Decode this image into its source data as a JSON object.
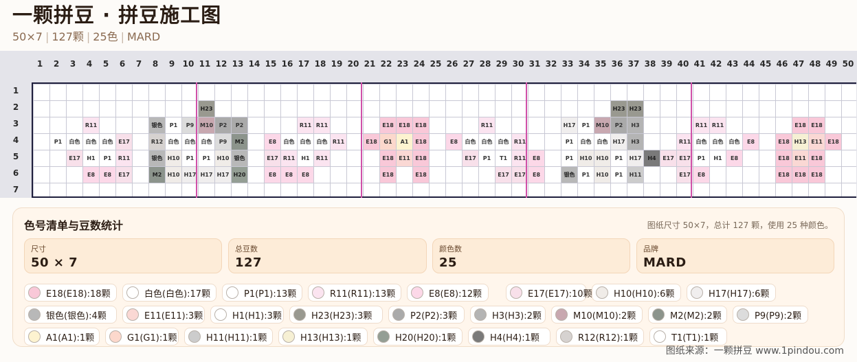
{
  "header": {
    "title": "一颗拼豆 · 拼豆施工图",
    "meta": [
      "50×7",
      "127颗",
      "25色",
      "MARD"
    ]
  },
  "grid": {
    "columns": 50,
    "rows": 7,
    "column_numbers": [
      "1",
      "2",
      "3",
      "4",
      "5",
      "6",
      "7",
      "8",
      "9",
      "10",
      "11",
      "12",
      "13",
      "14",
      "15",
      "16",
      "17",
      "18",
      "19",
      "20",
      "21",
      "22",
      "23",
      "24",
      "25",
      "26",
      "27",
      "28",
      "29",
      "30",
      "31",
      "32",
      "33",
      "34",
      "35",
      "36",
      "37",
      "38",
      "39",
      "40",
      "41",
      "42",
      "43",
      "44",
      "45",
      "46",
      "47",
      "48",
      "49",
      "50"
    ],
    "row_numbers": [
      "1",
      "2",
      "3",
      "4",
      "5",
      "6",
      "7"
    ],
    "divider_every": 10,
    "colors": {
      "E18": "#f9c8d8",
      "白色": "#ffffff",
      "P1": "#ffffff",
      "R11": "#fbe4f0",
      "E8": "#fcd8e8",
      "E17": "#f8e0ea",
      "H10": "#f0ece8",
      "H17": "#f0eeee",
      "银色": "#b8b8b8",
      "E11": "#fad8d4",
      "H1": "#ffffff",
      "H23": "#999990",
      "P2": "#aaaaaa",
      "H3": "#b4b4b4",
      "M10": "#c8a8b0",
      "M2": "#8c948c",
      "P9": "#dcdcdc",
      "A1": "#fdf3d0",
      "G1": "#fcd8cc",
      "H11": "#cccccc",
      "H13": "#f6f0d4",
      "H20": "#949e94",
      "H4": "#7a7a7a",
      "R12": "#d6d2d0",
      "T1": "#ffffff"
    },
    "dark_text": [
      "H23",
      "M2",
      "H20",
      "H4",
      "银色"
    ],
    "cells": [
      {
        "r": 2,
        "c": 11,
        "code": "H23"
      },
      {
        "r": 2,
        "c": 36,
        "code": "H23"
      },
      {
        "r": 2,
        "c": 37,
        "code": "H23"
      },
      {
        "r": 3,
        "c": 4,
        "code": "R11"
      },
      {
        "r": 3,
        "c": 8,
        "code": "银色"
      },
      {
        "r": 3,
        "c": 9,
        "code": "P1"
      },
      {
        "r": 3,
        "c": 10,
        "code": "P9"
      },
      {
        "r": 3,
        "c": 11,
        "code": "M10"
      },
      {
        "r": 3,
        "c": 12,
        "code": "P2"
      },
      {
        "r": 3,
        "c": 13,
        "code": "P2"
      },
      {
        "r": 3,
        "c": 17,
        "code": "R11"
      },
      {
        "r": 3,
        "c": 18,
        "code": "R11"
      },
      {
        "r": 3,
        "c": 22,
        "code": "E18"
      },
      {
        "r": 3,
        "c": 23,
        "code": "E18"
      },
      {
        "r": 3,
        "c": 24,
        "code": "E18"
      },
      {
        "r": 3,
        "c": 28,
        "code": "R11"
      },
      {
        "r": 3,
        "c": 33,
        "code": "H17"
      },
      {
        "r": 3,
        "c": 34,
        "code": "P1"
      },
      {
        "r": 3,
        "c": 35,
        "code": "M10"
      },
      {
        "r": 3,
        "c": 36,
        "code": "P2"
      },
      {
        "r": 3,
        "c": 37,
        "code": "H3"
      },
      {
        "r": 3,
        "c": 41,
        "code": "R11"
      },
      {
        "r": 3,
        "c": 42,
        "code": "R11"
      },
      {
        "r": 3,
        "c": 47,
        "code": "E18"
      },
      {
        "r": 3,
        "c": 48,
        "code": "E18"
      },
      {
        "r": 4,
        "c": 2,
        "code": "P1"
      },
      {
        "r": 4,
        "c": 3,
        "code": "白色"
      },
      {
        "r": 4,
        "c": 4,
        "code": "白色"
      },
      {
        "r": 4,
        "c": 5,
        "code": "白色"
      },
      {
        "r": 4,
        "c": 6,
        "code": "E17"
      },
      {
        "r": 4,
        "c": 8,
        "code": "R12"
      },
      {
        "r": 4,
        "c": 9,
        "code": "白色"
      },
      {
        "r": 4,
        "c": 10,
        "code": "白色"
      },
      {
        "r": 4,
        "c": 11,
        "code": "白色"
      },
      {
        "r": 4,
        "c": 12,
        "code": "P9"
      },
      {
        "r": 4,
        "c": 13,
        "code": "M2"
      },
      {
        "r": 4,
        "c": 15,
        "code": "E8"
      },
      {
        "r": 4,
        "c": 16,
        "code": "白色"
      },
      {
        "r": 4,
        "c": 17,
        "code": "白色"
      },
      {
        "r": 4,
        "c": 18,
        "code": "白色"
      },
      {
        "r": 4,
        "c": 19,
        "code": "R11"
      },
      {
        "r": 4,
        "c": 21,
        "code": "E18"
      },
      {
        "r": 4,
        "c": 22,
        "code": "G1"
      },
      {
        "r": 4,
        "c": 23,
        "code": "A1"
      },
      {
        "r": 4,
        "c": 24,
        "code": "E18"
      },
      {
        "r": 4,
        "c": 26,
        "code": "E8"
      },
      {
        "r": 4,
        "c": 27,
        "code": "白色"
      },
      {
        "r": 4,
        "c": 28,
        "code": "白色"
      },
      {
        "r": 4,
        "c": 29,
        "code": "白色"
      },
      {
        "r": 4,
        "c": 30,
        "code": "R11"
      },
      {
        "r": 4,
        "c": 33,
        "code": "P1"
      },
      {
        "r": 4,
        "c": 34,
        "code": "白色"
      },
      {
        "r": 4,
        "c": 35,
        "code": "白色"
      },
      {
        "r": 4,
        "c": 36,
        "code": "H17"
      },
      {
        "r": 4,
        "c": 37,
        "code": "H3"
      },
      {
        "r": 4,
        "c": 40,
        "code": "R11"
      },
      {
        "r": 4,
        "c": 41,
        "code": "白色"
      },
      {
        "r": 4,
        "c": 42,
        "code": "白色"
      },
      {
        "r": 4,
        "c": 43,
        "code": "白色"
      },
      {
        "r": 4,
        "c": 44,
        "code": "E8"
      },
      {
        "r": 4,
        "c": 46,
        "code": "E18"
      },
      {
        "r": 4,
        "c": 47,
        "code": "H13"
      },
      {
        "r": 4,
        "c": 48,
        "code": "E11"
      },
      {
        "r": 4,
        "c": 49,
        "code": "E18"
      },
      {
        "r": 5,
        "c": 3,
        "code": "E17"
      },
      {
        "r": 5,
        "c": 4,
        "code": "H1"
      },
      {
        "r": 5,
        "c": 5,
        "code": "P1"
      },
      {
        "r": 5,
        "c": 6,
        "code": "R11"
      },
      {
        "r": 5,
        "c": 8,
        "code": "银色"
      },
      {
        "r": 5,
        "c": 9,
        "code": "H10"
      },
      {
        "r": 5,
        "c": 10,
        "code": "P1"
      },
      {
        "r": 5,
        "c": 11,
        "code": "P1"
      },
      {
        "r": 5,
        "c": 12,
        "code": "H10"
      },
      {
        "r": 5,
        "c": 13,
        "code": "银色"
      },
      {
        "r": 5,
        "c": 15,
        "code": "E17"
      },
      {
        "r": 5,
        "c": 16,
        "code": "R11"
      },
      {
        "r": 5,
        "c": 17,
        "code": "H1"
      },
      {
        "r": 5,
        "c": 18,
        "code": "R11"
      },
      {
        "r": 5,
        "c": 22,
        "code": "E18"
      },
      {
        "r": 5,
        "c": 23,
        "code": "E11"
      },
      {
        "r": 5,
        "c": 24,
        "code": "E18"
      },
      {
        "r": 5,
        "c": 27,
        "code": "E17"
      },
      {
        "r": 5,
        "c": 28,
        "code": "P1"
      },
      {
        "r": 5,
        "c": 29,
        "code": "T1"
      },
      {
        "r": 5,
        "c": 30,
        "code": "R11"
      },
      {
        "r": 5,
        "c": 31,
        "code": "E8"
      },
      {
        "r": 5,
        "c": 33,
        "code": "P1"
      },
      {
        "r": 5,
        "c": 34,
        "code": "H10"
      },
      {
        "r": 5,
        "c": 35,
        "code": "H10"
      },
      {
        "r": 5,
        "c": 36,
        "code": "P1"
      },
      {
        "r": 5,
        "c": 37,
        "code": "H17"
      },
      {
        "r": 5,
        "c": 38,
        "code": "H4"
      },
      {
        "r": 5,
        "c": 39,
        "code": "E17"
      },
      {
        "r": 5,
        "c": 40,
        "code": "E17"
      },
      {
        "r": 5,
        "c": 41,
        "code": "P1"
      },
      {
        "r": 5,
        "c": 42,
        "code": "H1"
      },
      {
        "r": 5,
        "c": 43,
        "code": "E8"
      },
      {
        "r": 5,
        "c": 46,
        "code": "E18"
      },
      {
        "r": 5,
        "c": 47,
        "code": "E11"
      },
      {
        "r": 5,
        "c": 48,
        "code": "E18"
      },
      {
        "r": 6,
        "c": 4,
        "code": "E8"
      },
      {
        "r": 6,
        "c": 5,
        "code": "E8"
      },
      {
        "r": 6,
        "c": 6,
        "code": "E17"
      },
      {
        "r": 6,
        "c": 8,
        "code": "M2"
      },
      {
        "r": 6,
        "c": 9,
        "code": "H10"
      },
      {
        "r": 6,
        "c": 10,
        "code": "H17"
      },
      {
        "r": 6,
        "c": 11,
        "code": "H17"
      },
      {
        "r": 6,
        "c": 12,
        "code": "H17"
      },
      {
        "r": 6,
        "c": 13,
        "code": "H20"
      },
      {
        "r": 6,
        "c": 15,
        "code": "E8"
      },
      {
        "r": 6,
        "c": 16,
        "code": "E8"
      },
      {
        "r": 6,
        "c": 17,
        "code": "E8"
      },
      {
        "r": 6,
        "c": 22,
        "code": "E18"
      },
      {
        "r": 6,
        "c": 24,
        "code": "E18"
      },
      {
        "r": 6,
        "c": 29,
        "code": "E17"
      },
      {
        "r": 6,
        "c": 30,
        "code": "E17"
      },
      {
        "r": 6,
        "c": 31,
        "code": "E8"
      },
      {
        "r": 6,
        "c": 33,
        "code": "银色"
      },
      {
        "r": 6,
        "c": 34,
        "code": "P1"
      },
      {
        "r": 6,
        "c": 35,
        "code": "H10"
      },
      {
        "r": 6,
        "c": 36,
        "code": "P1"
      },
      {
        "r": 6,
        "c": 37,
        "code": "H11"
      },
      {
        "r": 6,
        "c": 40,
        "code": "E17"
      },
      {
        "r": 6,
        "c": 41,
        "code": "E8"
      },
      {
        "r": 6,
        "c": 46,
        "code": "E18"
      },
      {
        "r": 6,
        "c": 47,
        "code": "E18"
      },
      {
        "r": 6,
        "c": 48,
        "code": "E18"
      }
    ]
  },
  "panel": {
    "title": "色号清单与豆数统计",
    "note": "图纸尺寸 50×7，总计 127 颗，使用 25 种颜色。",
    "stats": [
      {
        "label": "尺寸",
        "value": "50 × 7"
      },
      {
        "label": "总豆数",
        "value": "127"
      },
      {
        "label": "颜色数",
        "value": "25"
      },
      {
        "label": "品牌",
        "value": "MARD"
      }
    ],
    "chips": [
      [
        {
          "text": "E18(E18):18颗",
          "color": "#f9c8d8"
        },
        {
          "text": "白色(白色):17颗",
          "color": "#ffffff"
        },
        {
          "text": "P1(P1):13颗",
          "color": "#ffffff"
        },
        {
          "text": "R11(R11):13颗",
          "color": "#fbe4f0"
        },
        {
          "text": "E8(E8):12颗",
          "color": "#fcd8e8"
        },
        {
          "text": "E17(E17):10颗",
          "color": "#f8e0ea"
        },
        {
          "text": "H10(H10):6颗",
          "color": "#f0ece8"
        },
        {
          "text": "H17(H17):6颗",
          "color": "#f0eeee"
        }
      ],
      [
        {
          "text": "银色(银色):4颗",
          "color": "#b8b8b8"
        },
        {
          "text": "E11(E11):3颗",
          "color": "#fad8d4"
        },
        {
          "text": "H1(H1):3颗",
          "color": "#ffffff"
        },
        {
          "text": "H23(H23):3颗",
          "color": "#999990"
        },
        {
          "text": "P2(P2):3颗",
          "color": "#aaaaaa"
        },
        {
          "text": "H3(H3):2颗",
          "color": "#b4b4b4"
        },
        {
          "text": "M10(M10):2颗",
          "color": "#c8a8b0"
        },
        {
          "text": "M2(M2):2颗",
          "color": "#8c948c"
        },
        {
          "text": "P9(P9):2颗",
          "color": "#dcdcdc"
        }
      ],
      [
        {
          "text": "A1(A1):1颗",
          "color": "#fdf3d0"
        },
        {
          "text": "G1(G1):1颗",
          "color": "#fcd8cc"
        },
        {
          "text": "H11(H11):1颗",
          "color": "#cccccc"
        },
        {
          "text": "H13(H13):1颗",
          "color": "#f6f0d4"
        },
        {
          "text": "H20(H20):1颗",
          "color": "#949e94"
        },
        {
          "text": "H4(H4):1颗",
          "color": "#7a7a7a"
        },
        {
          "text": "R12(R12):1颗",
          "color": "#d6d2d0"
        },
        {
          "text": "T1(T1):1颗",
          "color": "#ffffff"
        }
      ]
    ]
  },
  "footer": "图纸来源：一颗拼豆 www.1pindou.com"
}
